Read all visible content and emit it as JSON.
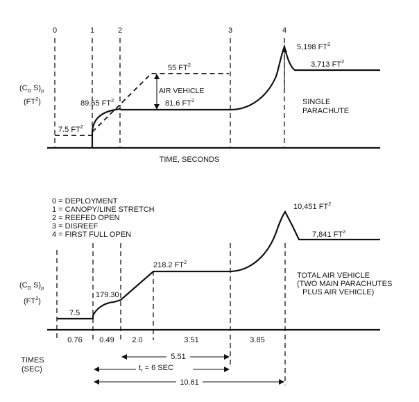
{
  "chart_data": [
    {
      "type": "line",
      "panel": "single-parachute",
      "ylabel_main": "(C",
      "ylabel_sub": "D",
      "ylabel_mid": " S)",
      "ylabel_sub2": "p",
      "ylabel_unit": "(FT",
      "ylabel_unit_sup": "2",
      "ylabel_unit_end": ")",
      "xlabel": "TIME, SECONDS",
      "side_label": [
        "SINGLE",
        "PARACHUTE"
      ],
      "event_numbers": [
        "0",
        "1",
        "2",
        "3",
        "4"
      ],
      "series": [
        {
          "values": [
            {
              "event": "0",
              "area": 7.5
            },
            {
              "event": "1",
              "area": 7.5
            },
            {
              "event": "2",
              "area": 89.65
            },
            {
              "event": "2-3",
              "area": 81.6
            },
            {
              "event": "3",
              "area": 81.6
            },
            {
              "event": "4",
              "area": 5198
            },
            {
              "event": "after-4",
              "area": 3713
            }
          ]
        }
      ],
      "annotations": {
        "a0": {
          "value": "7.5 FT",
          "sup": "2"
        },
        "a1": {
          "value": "89.65 FT",
          "sup": "2"
        },
        "a2": {
          "value": "81.6 FT",
          "sup": "2"
        },
        "a3": {
          "value": "55 FT",
          "sup": "2"
        },
        "a4": {
          "value": "5,198 FT",
          "sup": "2"
        },
        "a5": {
          "value": "3,713 FT",
          "sup": "2"
        },
        "air_vehicle": "AIR VEHICLE"
      }
    },
    {
      "type": "line",
      "panel": "total-air-vehicle",
      "ylabel_main": "(C",
      "ylabel_sub": "D",
      "ylabel_mid": " S)",
      "ylabel_sub2": "p",
      "ylabel_unit": "(FT",
      "ylabel_unit_sup": "2",
      "ylabel_unit_end": ")",
      "side_label": [
        "TOTAL AIR VEHICLE",
        "(TWO MAIN PARACHUTES",
        "PLUS AIR VEHICLE)"
      ],
      "legend": [
        "0 = DEPLOYMENT",
        "1 = CANOPY/LINE STRETCH",
        "2 = REEFED OPEN",
        "3 = DISREEF",
        "4 = FIRST FULL OPEN"
      ],
      "series": [
        {
          "values": [
            {
              "event": "0",
              "area": 7.5
            },
            {
              "event": "1",
              "area": 7.5
            },
            {
              "event": "2",
              "area": 179.3
            },
            {
              "event": "2-3",
              "area": 218.2
            },
            {
              "event": "3",
              "area": 218.2
            },
            {
              "event": "4",
              "area": 10451
            },
            {
              "event": "after-4",
              "area": 7841
            }
          ]
        }
      ],
      "annotations": {
        "b0": {
          "value": "7.5",
          "sup": ""
        },
        "b1": {
          "value": "179.30",
          "sup": ""
        },
        "b2": {
          "value": "218.2 FT",
          "sup": "2"
        },
        "b3": {
          "value": "10,451 FT",
          "sup": "2"
        },
        "b4": {
          "value": "7,841 FT",
          "sup": "2"
        }
      },
      "intervals": {
        "label": "TIMES",
        "unit": "(SEC)",
        "segments": [
          0.76,
          0.49,
          2.0,
          3.51,
          3.85
        ],
        "segment_labels": [
          "0.76",
          "0.49",
          "2.0",
          "3.51",
          "3.85"
        ],
        "spans": [
          {
            "label": "5.51",
            "value": 5.51
          },
          {
            "label": "t",
            "sub": "r",
            "suffix": " = 6 SEC",
            "value": 6
          },
          {
            "label": "10.61",
            "value": 10.61
          }
        ]
      }
    }
  ]
}
